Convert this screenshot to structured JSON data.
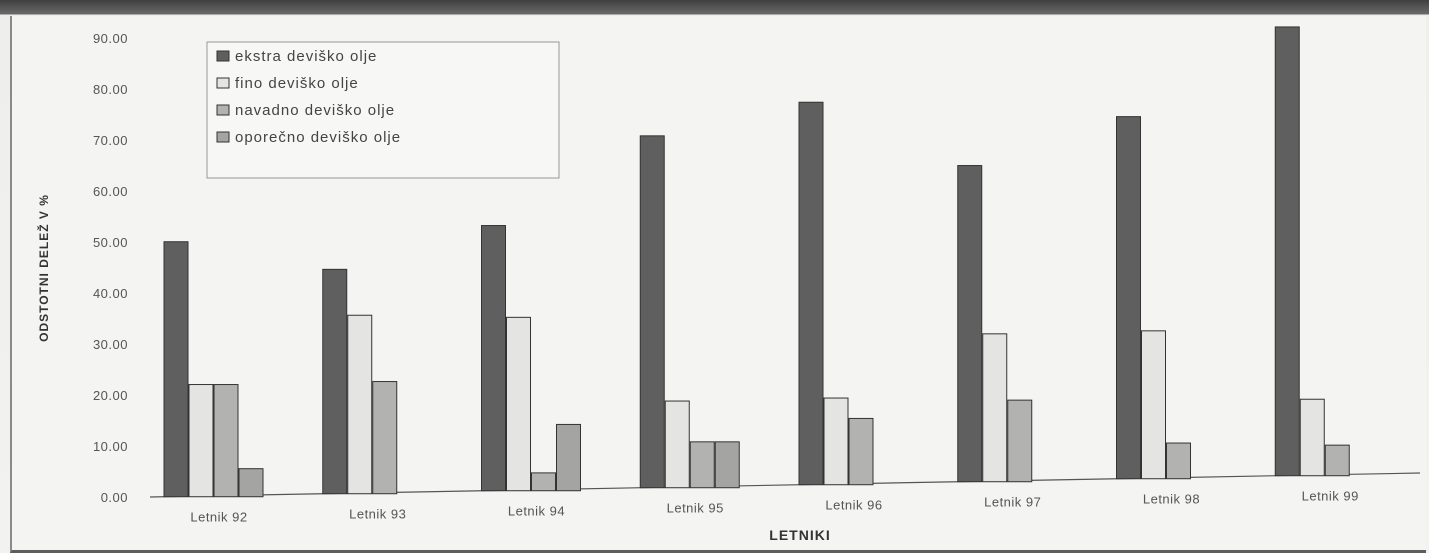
{
  "chart_data": {
    "type": "bar",
    "title": "",
    "xlabel": "LETNIKI",
    "ylabel": "ODSTOTNI DELEŽ V %",
    "ylim": [
      0,
      90
    ],
    "yticks": [
      "0.00",
      "10.00",
      "20.00",
      "30.00",
      "40.00",
      "50.00",
      "60.00",
      "70.00",
      "80.00",
      "90.00"
    ],
    "categories": [
      "Letnik 92",
      "Letnik 93",
      "Letnik 94",
      "Letnik 95",
      "Letnik 96",
      "Letnik 97",
      "Letnik 98",
      "Letnik 99"
    ],
    "series": [
      {
        "name": "ekstra deviško olje",
        "color": "#5f5f5f",
        "values": [
          50,
          44,
          52,
          69,
          75,
          62,
          71,
          88
        ]
      },
      {
        "name": "fino deviško olje",
        "color": "#e4e4e2",
        "values": [
          22,
          35,
          34,
          17,
          17,
          29,
          29,
          15
        ]
      },
      {
        "name": "navadno deviško olje",
        "color": "#b2b2b0",
        "values": [
          22,
          22,
          3.5,
          9,
          13,
          16,
          7,
          6
        ]
      },
      {
        "name": "oporečno deviško olje",
        "color": "#a4a4a2",
        "values": [
          5.5,
          0,
          13,
          9,
          0,
          0,
          0,
          0
        ]
      }
    ],
    "grid": false,
    "legend_position": "top-left"
  }
}
